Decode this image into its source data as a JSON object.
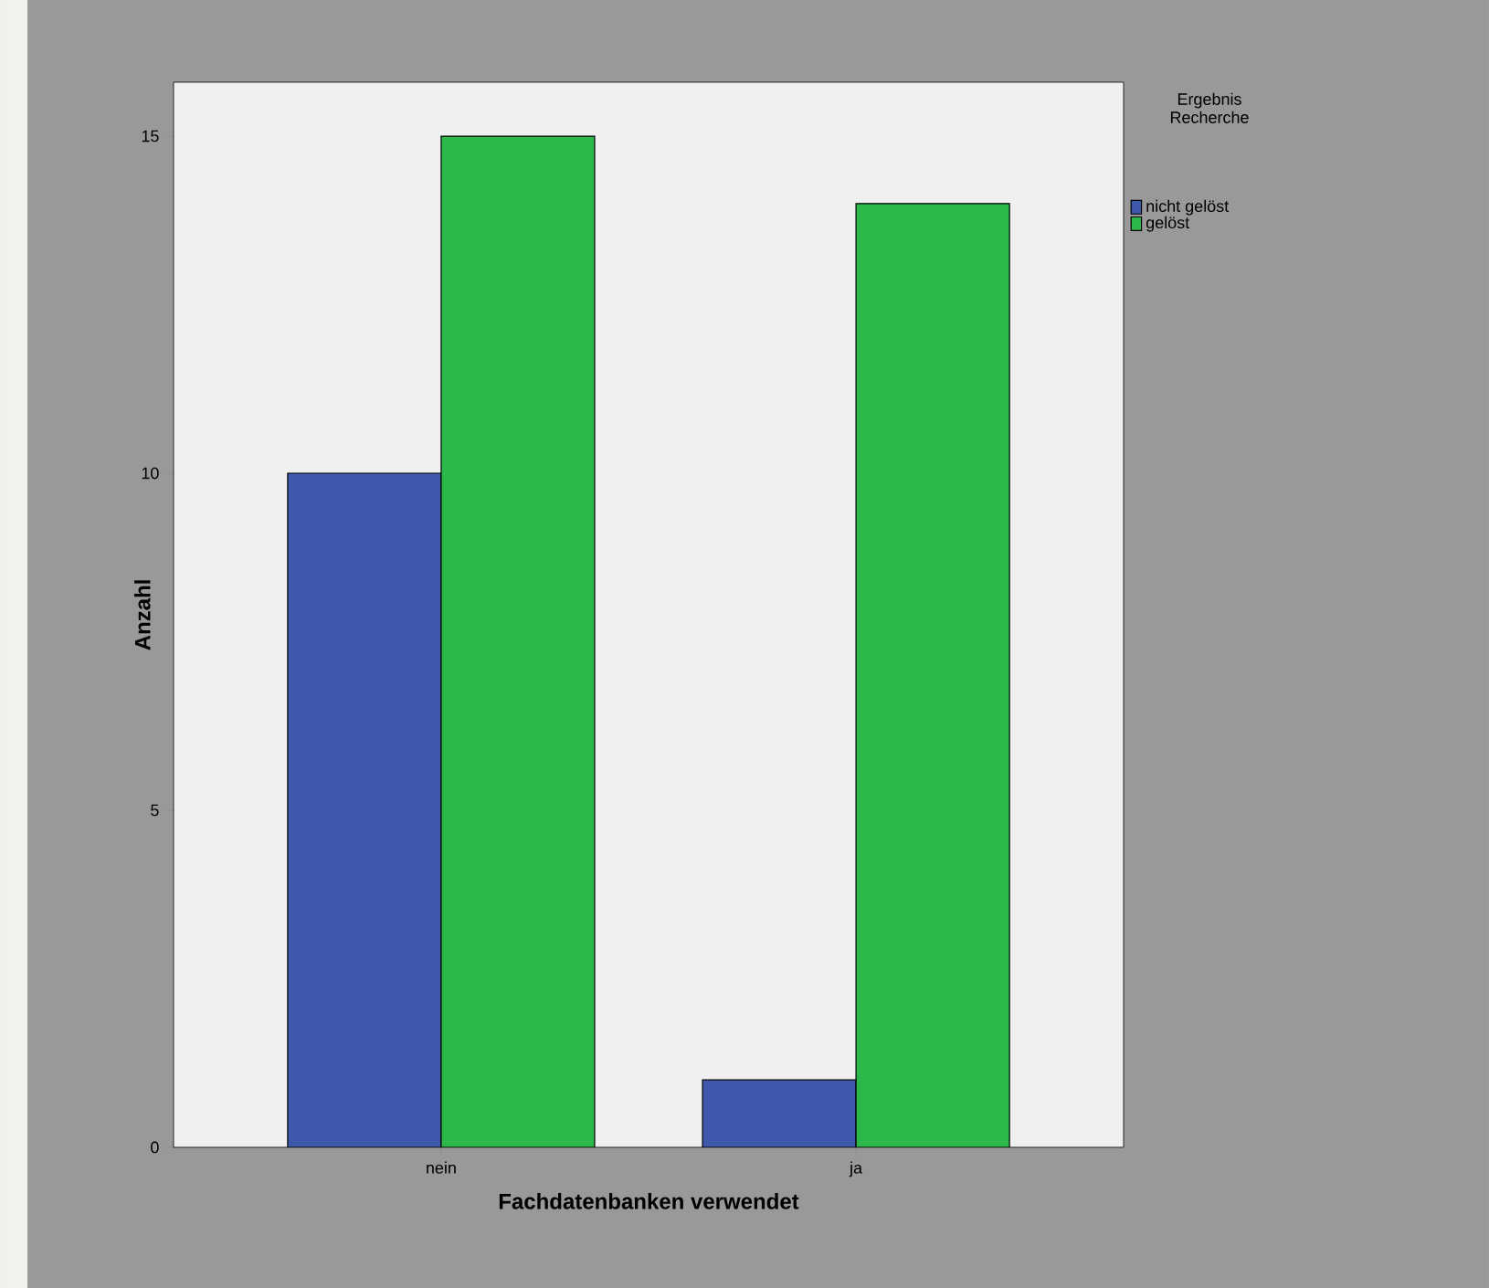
{
  "chart_data": {
    "type": "bar",
    "xlabel": "Fachdatenbanken verwendet",
    "ylabel": "Anzahl",
    "legend_title": "Ergebnis Recherche",
    "categories": [
      "nein",
      "ja"
    ],
    "series": [
      {
        "name": "nicht gelöst",
        "color": "#3e58ac",
        "values": [
          10,
          1
        ]
      },
      {
        "name": "gelöst",
        "color": "#2db84c",
        "values": [
          15,
          14
        ]
      }
    ],
    "ylim": [
      0,
      15.8
    ],
    "yticks": [
      0,
      5,
      10,
      15
    ],
    "legend": "top right"
  }
}
